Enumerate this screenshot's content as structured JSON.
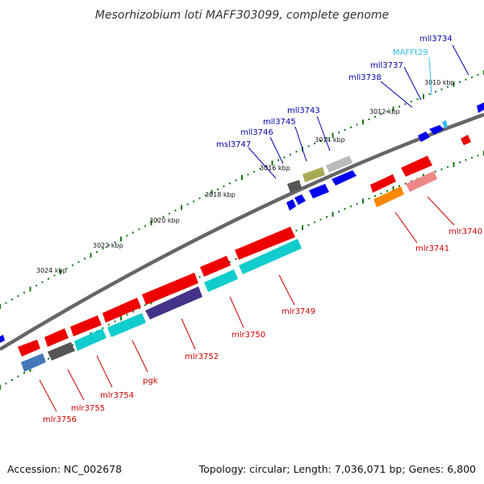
{
  "title": "Mesorhizobium loti MAFF303099, complete genome",
  "footer": {
    "accession": "Accession: NC_002678",
    "summary": "Topology: circular; Length: 7,036,071 bp; Genes: 6,800"
  },
  "scale_labels": [
    "3010 kbp",
    "3012 kbp",
    "3014 kbp",
    "3016 kbp",
    "3018 kbp",
    "3020 kbp",
    "3022 kbp",
    "3024 kbp"
  ],
  "gene_labels": {
    "forward": [
      "mll3734",
      "MAFFt29",
      "mll3737",
      "mll3738",
      "mll3743",
      "mll3745",
      "mll3746",
      "msl3747"
    ],
    "reverse": [
      "mlr3740",
      "mlr3741",
      "mlr3749",
      "mlr3750",
      "mlr3752",
      "pgk",
      "mlr3754",
      "mlr3755",
      "mlr3756"
    ]
  },
  "colors": {
    "forward_label": "#0000aa",
    "trna_label": "#33bbee",
    "reverse_label": "#cc0000",
    "backbone": "#666666",
    "tick": "#117711"
  }
}
